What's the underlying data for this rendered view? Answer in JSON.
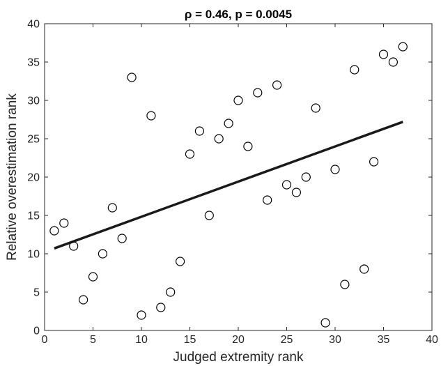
{
  "chart_data": {
    "type": "scatter",
    "title": "ρ = 0.46, p = 0.0045",
    "xlabel": "Judged extremity rank",
    "ylabel": "Relative overestimation rank",
    "xlim": [
      0,
      40
    ],
    "ylim": [
      0,
      40
    ],
    "xticks": [
      0,
      5,
      10,
      15,
      20,
      25,
      30,
      35,
      40
    ],
    "yticks": [
      0,
      5,
      10,
      15,
      20,
      25,
      30,
      35,
      40
    ],
    "grid": false,
    "marker": "open-circle",
    "marker_color": "#000000",
    "line_color": "#1a1a1a",
    "points": [
      {
        "x": 1,
        "y": 13
      },
      {
        "x": 2,
        "y": 14
      },
      {
        "x": 3,
        "y": 11
      },
      {
        "x": 4,
        "y": 4
      },
      {
        "x": 5,
        "y": 7
      },
      {
        "x": 6,
        "y": 10
      },
      {
        "x": 7,
        "y": 16
      },
      {
        "x": 8,
        "y": 12
      },
      {
        "x": 9,
        "y": 33
      },
      {
        "x": 10,
        "y": 2
      },
      {
        "x": 11,
        "y": 28
      },
      {
        "x": 12,
        "y": 3
      },
      {
        "x": 13,
        "y": 5
      },
      {
        "x": 14,
        "y": 9
      },
      {
        "x": 15,
        "y": 23
      },
      {
        "x": 16,
        "y": 26
      },
      {
        "x": 17,
        "y": 15
      },
      {
        "x": 18,
        "y": 25
      },
      {
        "x": 19,
        "y": 27
      },
      {
        "x": 20,
        "y": 30
      },
      {
        "x": 21,
        "y": 24
      },
      {
        "x": 22,
        "y": 31
      },
      {
        "x": 23,
        "y": 17
      },
      {
        "x": 24,
        "y": 32
      },
      {
        "x": 25,
        "y": 19
      },
      {
        "x": 26,
        "y": 18
      },
      {
        "x": 27,
        "y": 20
      },
      {
        "x": 28,
        "y": 29
      },
      {
        "x": 29,
        "y": 1
      },
      {
        "x": 30,
        "y": 21
      },
      {
        "x": 31,
        "y": 6
      },
      {
        "x": 32,
        "y": 34
      },
      {
        "x": 33,
        "y": 8
      },
      {
        "x": 34,
        "y": 22
      },
      {
        "x": 35,
        "y": 36
      },
      {
        "x": 36,
        "y": 35
      },
      {
        "x": 37,
        "y": 37
      }
    ],
    "fit_line": {
      "x": [
        1,
        37
      ],
      "y": [
        10.7,
        27.2
      ]
    }
  }
}
